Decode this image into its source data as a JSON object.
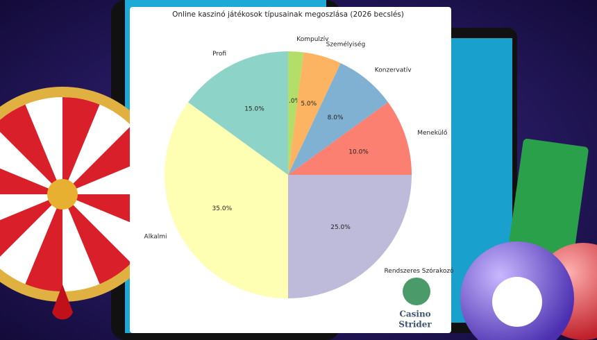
{
  "chart_data": {
    "type": "pie",
    "title": "Online kaszinó játékosok típusainak megoszlása (2026 becslés)",
    "categories": [
      "Kompulzív",
      "Személyiség",
      "Konzervatív",
      "Menekülő",
      "Rendszeres Szórakozó",
      "Alkalmi",
      "Profi"
    ],
    "values": [
      2.0,
      5.0,
      8.0,
      10.0,
      25.0,
      35.0,
      15.0
    ],
    "value_labels": [
      "2.0%",
      "5.0%",
      "8.0%",
      "10.0%",
      "25.0%",
      "35.0%",
      "15.0%"
    ],
    "colors": [
      "#b3de69",
      "#fdb462",
      "#80b1d3",
      "#fb8072",
      "#bebada",
      "#ffffb3",
      "#8dd3c7"
    ]
  },
  "logo": {
    "line1": "Casino",
    "line2": "Strider"
  }
}
